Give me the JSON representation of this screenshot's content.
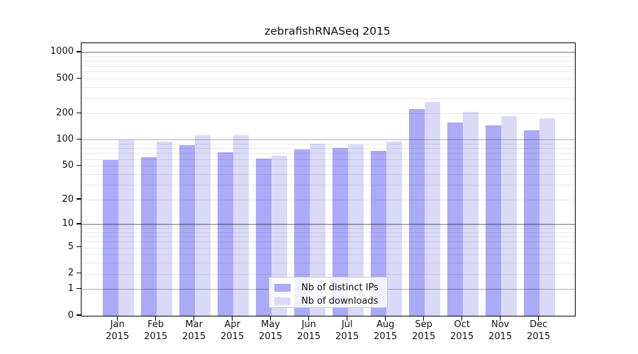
{
  "title": "zebrafishRNASeq 2015",
  "colors": {
    "distinct_ips_bar": "#aaaaf8",
    "downloads_bar": "#dadaf8",
    "minor_gridline_on_white": "#ebebeb",
    "major_gridline_on_white": "#b0b0b0",
    "axis_box": "#000000",
    "legend_border": "#c9c9c9",
    "background": "#ffffff"
  },
  "chart_data": {
    "type": "bar",
    "title": "zebrafishRNASeq 2015",
    "categories": [
      "Jan 2015",
      "Feb 2015",
      "Mar 2015",
      "Apr 2015",
      "May 2015",
      "Jun 2015",
      "Jul 2015",
      "Aug 2015",
      "Sep 2015",
      "Oct 2015",
      "Nov 2015",
      "Dec 2015"
    ],
    "series": [
      {
        "name": "Nb of distinct IPs",
        "color": "#aaaaf8",
        "values": [
          58,
          63,
          87,
          72,
          61,
          77,
          80,
          75,
          224,
          157,
          146,
          128
        ]
      },
      {
        "name": "Nb of downloads",
        "color": "#dadaf8",
        "values": [
          100,
          95,
          113,
          113,
          66,
          91,
          89,
          95,
          270,
          208,
          186,
          176
        ]
      }
    ],
    "xlabel": "",
    "ylabel": "",
    "yscale": "log1p",
    "ylim": [
      0,
      1272
    ],
    "ytick_labels": [
      0,
      1,
      2,
      5,
      10,
      20,
      50,
      100,
      200,
      500,
      1000
    ],
    "grid": "horizontal minor lines at 2-9 per decade, darker major lines at 1, 10, 100, 1000",
    "legend_position": "inside bottom-center",
    "legend_entries": [
      "Nb of distinct IPs",
      "Nb of downloads"
    ]
  }
}
